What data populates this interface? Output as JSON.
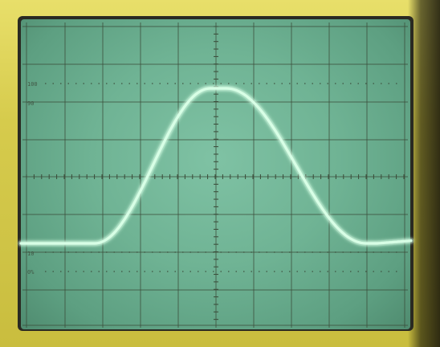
{
  "graticule": {
    "label_100": "100",
    "label_90": "90",
    "label_10": "10",
    "label_0": "0%"
  },
  "colors": {
    "trace": "#d8ffe6",
    "grid": "#3a4a38",
    "bezel": "#d9cf52"
  },
  "trace": {
    "baseline_level": 0.0,
    "peak_level": 1.0
  }
}
